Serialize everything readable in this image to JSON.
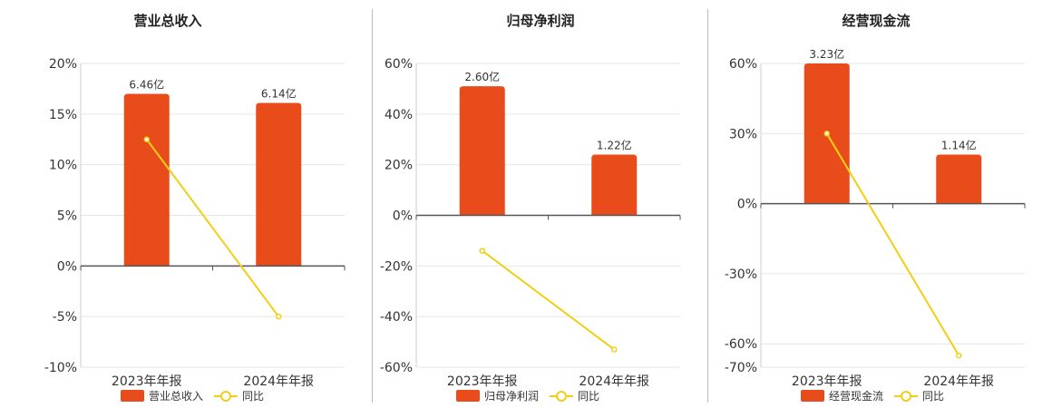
{
  "chart_data": [
    {
      "type": "bar",
      "title": "营业总收入",
      "categories": [
        "2023年年报",
        "2024年年报"
      ],
      "series": [
        {
          "name": "营业总收入",
          "type": "bar",
          "labels": [
            "6.46亿",
            "6.14亿"
          ],
          "values": [
            17.0,
            16.1
          ]
        },
        {
          "name": "同比",
          "type": "line",
          "values": [
            12.5,
            -5.0
          ]
        }
      ],
      "ylim": [
        -10,
        20
      ],
      "yticks": [
        -10,
        -5,
        0,
        5,
        10,
        15,
        20
      ],
      "ytick_labels": [
        "-10%",
        "-5%",
        "0%",
        "5%",
        "10%",
        "15%",
        "20%"
      ],
      "grid": true,
      "legend": "bottom"
    },
    {
      "type": "bar",
      "title": "归母净利润",
      "categories": [
        "2023年年报",
        "2024年年报"
      ],
      "series": [
        {
          "name": "归母净利润",
          "type": "bar",
          "labels": [
            "2.60亿",
            "1.22亿"
          ],
          "values": [
            51.0,
            24.0
          ]
        },
        {
          "name": "同比",
          "type": "line",
          "values": [
            -14.0,
            -53.0
          ]
        }
      ],
      "ylim": [
        -60,
        60
      ],
      "yticks": [
        -60,
        -40,
        -20,
        0,
        20,
        40,
        60
      ],
      "ytick_labels": [
        "-60%",
        "-40%",
        "-20%",
        "0%",
        "20%",
        "40%",
        "60%"
      ],
      "grid": true,
      "legend": "bottom"
    },
    {
      "type": "bar",
      "title": "经营现金流",
      "categories": [
        "2023年年报",
        "2024年年报"
      ],
      "series": [
        {
          "name": "经营现金流",
          "type": "bar",
          "labels": [
            "3.23亿",
            "1.14亿"
          ],
          "values": [
            60.0,
            21.0
          ]
        },
        {
          "name": "同比",
          "type": "line",
          "values": [
            30.0,
            -65.0
          ]
        }
      ],
      "ylim": [
        -70,
        60
      ],
      "yticks": [
        -70,
        -60,
        -30,
        0,
        30,
        60
      ],
      "ytick_labels": [
        "-70%",
        "-60%",
        "-30%",
        "0%",
        "30%",
        "60%"
      ],
      "grid": true,
      "legend": "bottom"
    }
  ],
  "colors": {
    "bar": "#e84c1b",
    "line": "#f2cf16",
    "axis": "#555555",
    "grid": "#e6e6e6"
  }
}
